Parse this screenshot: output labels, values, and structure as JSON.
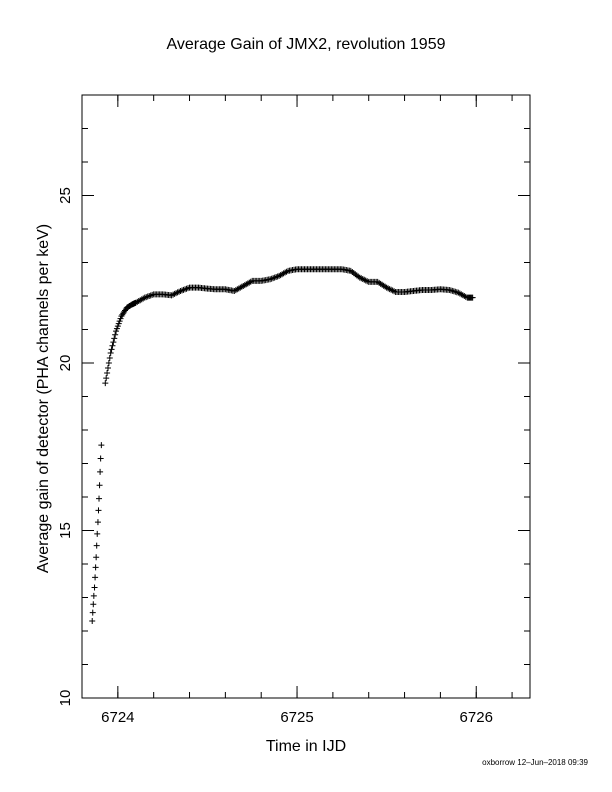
{
  "chart_data": {
    "type": "scatter",
    "title": "Average Gain of JMX2, revolution 1959",
    "xlabel": "Time in IJD",
    "ylabel": "Average gain of detector (PHA channels per keV)",
    "xlim": [
      6723.8,
      6726.3
    ],
    "ylim": [
      10,
      28
    ],
    "xticks": [
      6724,
      6725,
      6726
    ],
    "yticks": [
      10,
      15,
      20,
      25
    ],
    "grid": false,
    "marker": "plus",
    "series": [
      {
        "x": [
          6723.857,
          6723.86,
          6723.863,
          6723.866,
          6723.87,
          6723.873,
          6723.876,
          6723.879,
          6723.882,
          6723.885,
          6723.889,
          6723.892,
          6723.895,
          6723.898,
          6723.901,
          6723.904,
          6723.908
        ],
        "y": [
          12.3,
          12.55,
          12.8,
          13.05,
          13.3,
          13.6,
          13.9,
          14.2,
          14.55,
          14.9,
          15.25,
          15.6,
          15.95,
          16.35,
          16.75,
          17.15,
          17.55
        ]
      },
      {
        "x": [
          6723.93,
          6723.96,
          6723.99,
          6724.02,
          6724.05,
          6724.08,
          6724.1,
          6724.15,
          6724.2,
          6724.25,
          6724.3,
          6724.35,
          6724.4,
          6724.45,
          6724.5,
          6724.55,
          6724.6,
          6724.65,
          6724.7,
          6724.75,
          6724.8,
          6724.85,
          6724.9,
          6724.95,
          6725.0,
          6725.05,
          6725.1,
          6725.15,
          6725.2,
          6725.25,
          6725.3,
          6725.35,
          6725.4,
          6725.45,
          6725.5,
          6725.55,
          6725.6,
          6725.65,
          6725.7,
          6725.75,
          6725.8,
          6725.85,
          6725.9,
          6725.95,
          6725.98
        ],
        "y": [
          19.4,
          20.3,
          20.95,
          21.4,
          21.65,
          21.75,
          21.8,
          21.95,
          22.05,
          22.05,
          22.02,
          22.15,
          22.25,
          22.25,
          22.22,
          22.2,
          22.2,
          22.15,
          22.3,
          22.45,
          22.45,
          22.5,
          22.6,
          22.75,
          22.8,
          22.8,
          22.8,
          22.8,
          22.8,
          22.8,
          22.75,
          22.55,
          22.42,
          22.42,
          22.25,
          22.12,
          22.12,
          22.15,
          22.18,
          22.18,
          22.2,
          22.18,
          22.1,
          21.95,
          21.95
        ]
      }
    ]
  },
  "footer": "oxborrow 12–Jun–2018 09:39"
}
